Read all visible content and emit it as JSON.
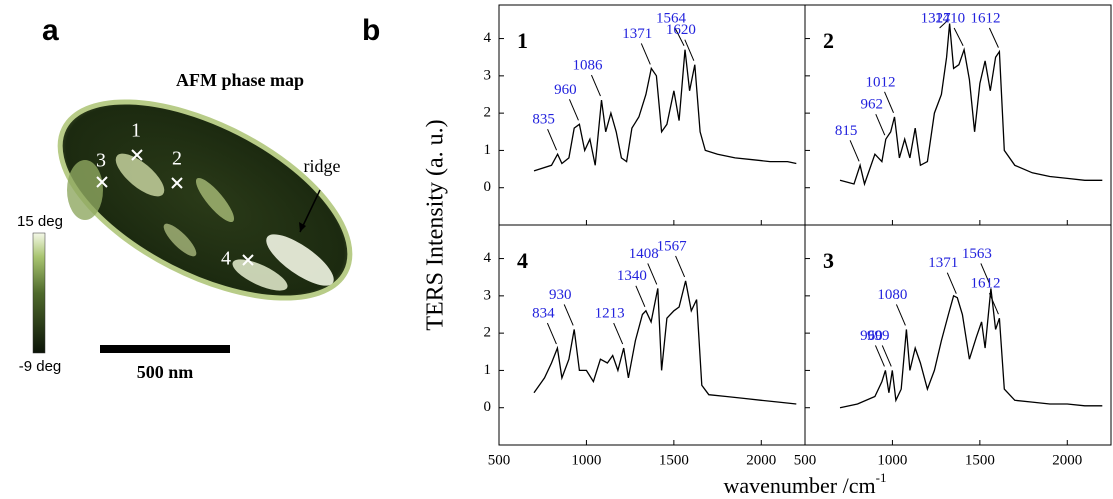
{
  "panel_a": {
    "label": "a",
    "title": "AFM phase map",
    "colorbar_max": "15 deg",
    "colorbar_min": "-9 deg",
    "scale_bar": "500 nm",
    "markers": [
      "1",
      "2",
      "3",
      "4"
    ],
    "annotation": "ridge"
  },
  "figure_b": {
    "label": "b",
    "ylabel": "TERS Intensity (a. u.)",
    "xlabel": "wavenumber /cm",
    "xlabel_superscript": "-1"
  },
  "chart_data": [
    {
      "type": "line",
      "panel": "1",
      "color": "#000000",
      "peak_color": "#2222dd",
      "x": [
        700,
        800,
        835,
        860,
        900,
        930,
        960,
        990,
        1020,
        1050,
        1086,
        1110,
        1140,
        1170,
        1200,
        1230,
        1260,
        1300,
        1340,
        1371,
        1400,
        1430,
        1460,
        1500,
        1530,
        1564,
        1590,
        1620,
        1650,
        1680,
        1750,
        1850,
        1950,
        2050,
        2150,
        2200
      ],
      "values": [
        0.45,
        0.6,
        0.9,
        0.65,
        0.8,
        1.6,
        1.7,
        1.0,
        1.3,
        0.6,
        2.35,
        1.5,
        2.0,
        1.5,
        0.8,
        0.7,
        1.6,
        1.9,
        2.5,
        3.2,
        3.0,
        1.5,
        1.7,
        2.6,
        1.8,
        3.7,
        2.6,
        3.3,
        1.5,
        1.0,
        0.9,
        0.8,
        0.75,
        0.7,
        0.7,
        0.65
      ],
      "peaks": [
        835,
        960,
        1086,
        1371,
        1564,
        1620
      ],
      "xlim": [
        500,
        2250
      ],
      "ylim": [
        -1,
        4.9
      ],
      "xticks": [
        500,
        1000,
        1500,
        2000
      ],
      "yticks": [
        0,
        1,
        2,
        3,
        4
      ]
    },
    {
      "type": "line",
      "panel": "2",
      "color": "#000000",
      "peak_color": "#2222dd",
      "x": [
        700,
        780,
        815,
        840,
        900,
        940,
        962,
        990,
        1012,
        1040,
        1070,
        1100,
        1130,
        1160,
        1200,
        1240,
        1280,
        1310,
        1327,
        1350,
        1380,
        1410,
        1440,
        1470,
        1500,
        1530,
        1560,
        1590,
        1612,
        1640,
        1700,
        1800,
        1900,
        2000,
        2100,
        2200
      ],
      "values": [
        0.2,
        0.1,
        0.6,
        0.1,
        0.9,
        0.7,
        1.3,
        1.5,
        1.9,
        0.8,
        1.3,
        0.8,
        1.6,
        0.6,
        0.7,
        2.0,
        2.5,
        3.5,
        4.4,
        3.2,
        3.3,
        3.7,
        2.9,
        1.5,
        2.8,
        3.4,
        2.6,
        3.5,
        3.65,
        1.0,
        0.6,
        0.4,
        0.3,
        0.25,
        0.2,
        0.2
      ],
      "peaks": [
        815,
        962,
        1012,
        1327,
        1410,
        1612
      ],
      "xlim": [
        500,
        2250
      ],
      "ylim": [
        -1,
        4.9
      ],
      "xticks": [
        500,
        1000,
        1500,
        2000
      ],
      "yticks": [
        0,
        1,
        2,
        3,
        4
      ]
    },
    {
      "type": "line",
      "panel": "4",
      "color": "#000000",
      "peak_color": "#2222dd",
      "x": [
        700,
        760,
        800,
        834,
        860,
        900,
        930,
        960,
        1000,
        1040,
        1080,
        1120,
        1150,
        1180,
        1213,
        1240,
        1280,
        1320,
        1340,
        1370,
        1408,
        1430,
        1460,
        1500,
        1530,
        1567,
        1600,
        1630,
        1660,
        1700,
        1800,
        1900,
        2000,
        2100,
        2200
      ],
      "values": [
        0.4,
        0.8,
        1.2,
        1.6,
        0.8,
        1.3,
        2.1,
        1.0,
        1.0,
        0.7,
        1.3,
        1.2,
        1.4,
        1.0,
        1.6,
        0.8,
        1.8,
        2.5,
        2.6,
        2.3,
        3.2,
        1.0,
        2.4,
        2.6,
        2.7,
        3.4,
        2.6,
        2.9,
        0.6,
        0.35,
        0.3,
        0.25,
        0.2,
        0.15,
        0.1
      ],
      "peaks": [
        834,
        930,
        1213,
        1340,
        1408,
        1567
      ],
      "xlim": [
        500,
        2250
      ],
      "ylim": [
        -1,
        4.9
      ],
      "xticks": [
        500,
        1000,
        1500,
        2000
      ],
      "yticks": [
        0,
        1,
        2,
        3,
        4
      ]
    },
    {
      "type": "line",
      "panel": "3",
      "color": "#000000",
      "peak_color": "#2222dd",
      "x": [
        700,
        800,
        900,
        940,
        960,
        980,
        999,
        1020,
        1050,
        1080,
        1100,
        1130,
        1160,
        1200,
        1240,
        1280,
        1320,
        1350,
        1371,
        1400,
        1440,
        1480,
        1510,
        1530,
        1563,
        1590,
        1612,
        1640,
        1700,
        1800,
        1900,
        2000,
        2100,
        2200
      ],
      "values": [
        0.0,
        0.1,
        0.3,
        0.7,
        1.0,
        0.4,
        1.0,
        0.2,
        0.5,
        2.1,
        1.0,
        1.6,
        1.2,
        0.5,
        1.0,
        1.8,
        2.5,
        3.0,
        2.95,
        2.5,
        1.3,
        1.9,
        2.3,
        1.6,
        3.2,
        2.1,
        2.4,
        0.5,
        0.2,
        0.15,
        0.1,
        0.1,
        0.05,
        0.05
      ],
      "peaks": [
        960,
        999,
        1080,
        1371,
        1563,
        1612
      ],
      "xlim": [
        500,
        2250
      ],
      "ylim": [
        -1,
        4.9
      ],
      "xticks": [
        500,
        1000,
        1500,
        2000
      ],
      "yticks": [
        0,
        1,
        2,
        3,
        4
      ]
    }
  ]
}
